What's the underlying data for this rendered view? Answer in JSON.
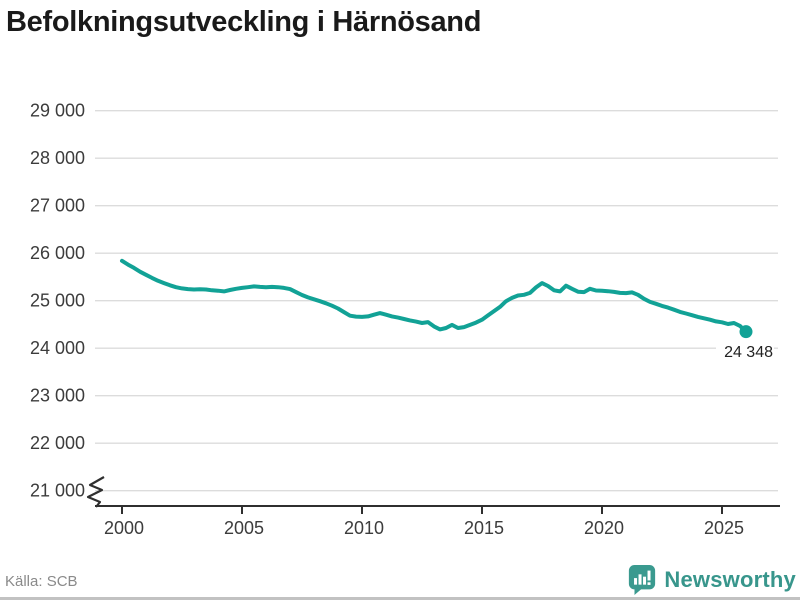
{
  "title": "Befolkningsutveckling i Härnösand",
  "source": "Källa: SCB",
  "brand": {
    "name": "Newsworthy",
    "icon": "bar-chart-speech-bubble-icon",
    "color": "#38968c"
  },
  "colors": {
    "line": "#12a296",
    "grid": "#dcdcdc",
    "axis": "#2f2f2f",
    "tick_label": "#3c3c3c",
    "annotation": "#222222",
    "source_text": "#8a8a8a"
  },
  "chart_data": {
    "type": "line",
    "title": "Befolkningsutveckling i Härnösand",
    "xlabel": "",
    "ylabel": "",
    "grid": "horizontal",
    "legend": "none",
    "axis_break_bottom": true,
    "x_start": 2000,
    "x_step": 0.25,
    "x_end": 2026,
    "xlim": [
      1998.9,
      2027.3
    ],
    "ylim": [
      21000,
      29000
    ],
    "x_ticks": [
      2000,
      2005,
      2010,
      2015,
      2020,
      2025
    ],
    "x_tick_labels": [
      "2000",
      "2005",
      "2010",
      "2015",
      "2020",
      "2025"
    ],
    "y_ticks": [
      29000,
      28000,
      27000,
      26000,
      25000,
      24000,
      23000,
      22000,
      21000
    ],
    "y_tick_labels": [
      "29 000",
      "28 000",
      "27 000",
      "26 000",
      "25 000",
      "24 000",
      "23 000",
      "22 000",
      "21 000"
    ],
    "series": [
      {
        "name": "Befolkning",
        "values": [
          25840,
          25760,
          25690,
          25610,
          25545,
          25480,
          25420,
          25370,
          25325,
          25285,
          25260,
          25245,
          25235,
          25240,
          25235,
          25220,
          25210,
          25195,
          25225,
          25250,
          25270,
          25285,
          25300,
          25290,
          25285,
          25290,
          25285,
          25270,
          25245,
          25180,
          25120,
          25070,
          25030,
          24990,
          24945,
          24895,
          24835,
          24760,
          24685,
          24665,
          24660,
          24670,
          24705,
          24740,
          24705,
          24670,
          24645,
          24615,
          24585,
          24560,
          24530,
          24550,
          24460,
          24395,
          24425,
          24490,
          24425,
          24445,
          24490,
          24540,
          24600,
          24690,
          24780,
          24870,
          24990,
          25060,
          25110,
          25125,
          25165,
          25280,
          25370,
          25310,
          25220,
          25195,
          25315,
          25250,
          25190,
          25180,
          25250,
          25215,
          25210,
          25200,
          25185,
          25165,
          25160,
          25175,
          25125,
          25040,
          24975,
          24935,
          24890,
          24855,
          24810,
          24765,
          24730,
          24695,
          24660,
          24630,
          24600,
          24565,
          24545,
          24510,
          24530,
          24470,
          24348
        ]
      }
    ],
    "end_annotation": {
      "text": "24 348",
      "value": 24348,
      "x": 2026
    }
  }
}
